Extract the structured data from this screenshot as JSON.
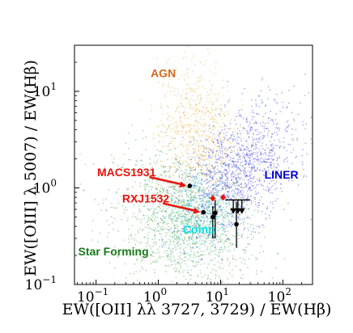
{
  "chart_data": {
    "type": "scatter",
    "xlabel": "EW([OII] λλ 3727, 3729) / EW(Hβ)",
    "ylabel": "EW([OIII] λ 5007) / EW(Hβ)",
    "xscale": "log",
    "yscale": "log",
    "xlim": [
      0.045,
      300
    ],
    "ylim": [
      0.1,
      30
    ],
    "x_ticks": [
      {
        "value": 0.1,
        "label": "10"
      },
      {
        "value": 1,
        "label": "10"
      },
      {
        "value": 10,
        "label": "10"
      },
      {
        "value": 100,
        "label": "10"
      }
    ],
    "x_tick_exponents": [
      "−1",
      "0",
      "1",
      "2"
    ],
    "y_ticks": [
      {
        "value": 0.1,
        "label": "10"
      },
      {
        "value": 1,
        "label": "10"
      },
      {
        "value": 10,
        "label": "10"
      }
    ],
    "y_tick_exponents": [
      "−1",
      "0",
      "1"
    ],
    "regions": [
      {
        "name": "AGN",
        "color": "#d2691e",
        "x": 1.2,
        "y": 14
      },
      {
        "name": "LINER",
        "color": "#0000cc",
        "x": 95,
        "y": 1.25
      },
      {
        "name": "Comp",
        "color": "#00e5e5",
        "x": 4.5,
        "y": 0.34
      },
      {
        "name": "Star Forming",
        "color": "#1a7a1a",
        "x": 0.19,
        "y": 0.2
      }
    ],
    "background_populations": [
      {
        "name": "star-forming",
        "color": "#2e8b2e",
        "center": [
          2.5,
          0.45
        ],
        "spread": [
          0.55,
          0.35
        ]
      },
      {
        "name": "composite",
        "color": "#00c8b0",
        "center": [
          4.5,
          0.6
        ],
        "spread": [
          0.3,
          0.22
        ]
      },
      {
        "name": "agn",
        "color": "#e8a020",
        "center": [
          4,
          4
        ],
        "spread": [
          0.3,
          0.35
        ]
      },
      {
        "name": "liner",
        "color": "#2020e0",
        "center": [
          20,
          1.5
        ],
        "spread": [
          0.45,
          0.3
        ]
      }
    ],
    "points": [
      {
        "name": "MACS1931",
        "x": 3.2,
        "y": 1.05,
        "color": "#000000"
      },
      {
        "name": "RXJ1532",
        "x": 5.3,
        "y": 0.56,
        "color": "#000000"
      },
      {
        "name": "",
        "x": 7.5,
        "y": 0.5,
        "color": "#000000",
        "yerr": [
          0.2,
          0.15
        ]
      },
      {
        "name": "",
        "x": 8.2,
        "y": 0.55,
        "color": "#000000",
        "yerr": [
          0.25,
          0.2
        ]
      },
      {
        "name": "",
        "x": 18,
        "y": 0.42,
        "color": "#000000",
        "yerr": [
          0.18,
          0.3
        ]
      },
      {
        "name": "",
        "x": 7.5,
        "y": 0.78,
        "color": "#e8140f"
      },
      {
        "name": "",
        "x": 11,
        "y": 0.8,
        "color": "#e8140f"
      }
    ],
    "upper_limits": [
      {
        "x": 16,
        "y": 0.58
      },
      {
        "x": 19,
        "y": 0.58
      },
      {
        "x": 22,
        "y": 0.58
      }
    ],
    "hline": {
      "y": 0.75,
      "x_range": [
        12,
        30
      ]
    },
    "annotations": [
      {
        "text": "MACS1931",
        "target": "MACS1931"
      },
      {
        "text": "RXJ1532",
        "target": "RXJ1532"
      }
    ]
  }
}
